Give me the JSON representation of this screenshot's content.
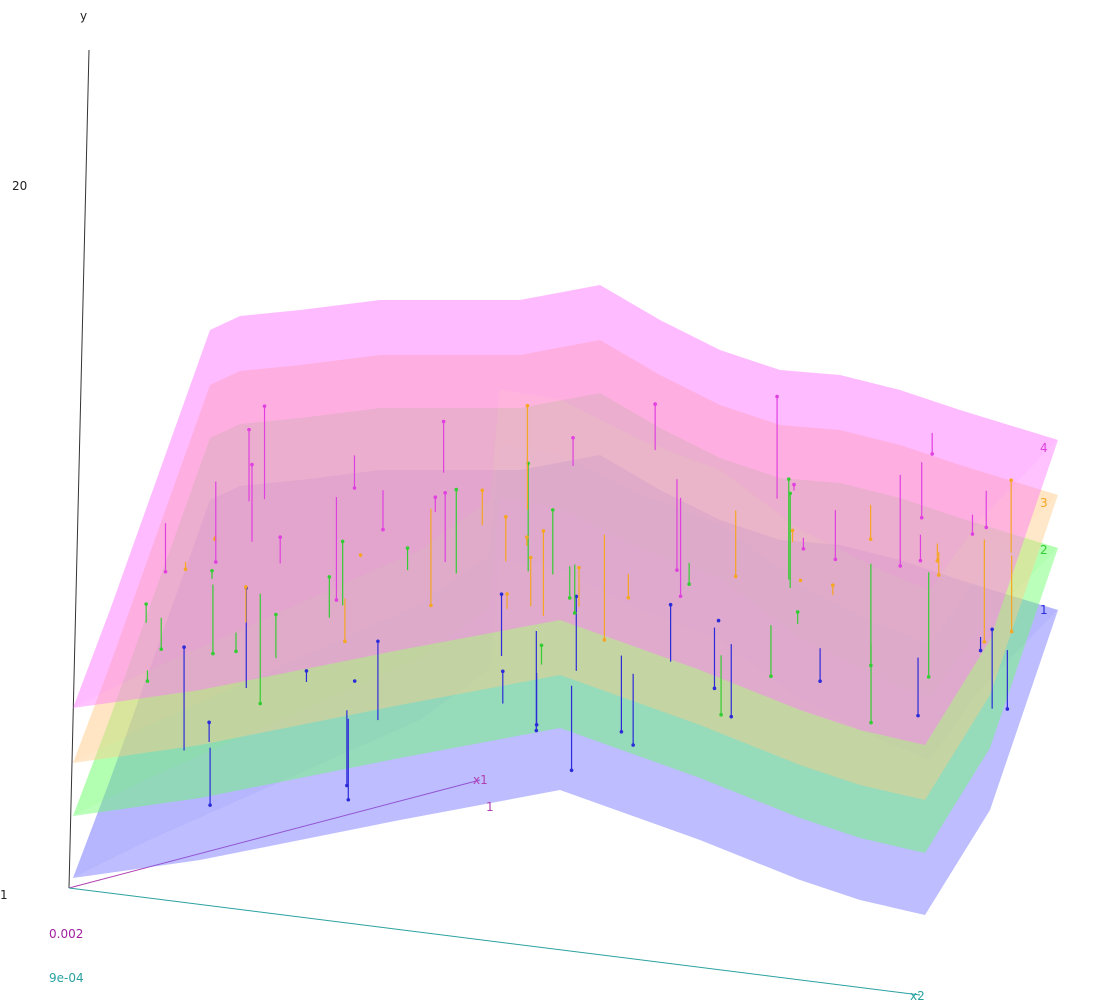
{
  "chart_data": {
    "type": "surface",
    "title": "",
    "axes": {
      "y": {
        "label": "y",
        "tick_top": "20",
        "tick_bottom": "1"
      },
      "x1": {
        "label": "x1",
        "tick": "1",
        "min_label": "0.002"
      },
      "x2": {
        "label": "x2",
        "min_label": "9e-04"
      }
    },
    "series": [
      {
        "name": "1",
        "color": "#6d6dff",
        "stem_color": "#2b2bd9"
      },
      {
        "name": "2",
        "color": "#66ff66",
        "stem_color": "#33cc33"
      },
      {
        "name": "3",
        "color": "#ffcc88",
        "stem_color": "#f5a623"
      },
      {
        "name": "4",
        "color": "#ff77ff",
        "stem_color": "#e040e0"
      }
    ]
  }
}
